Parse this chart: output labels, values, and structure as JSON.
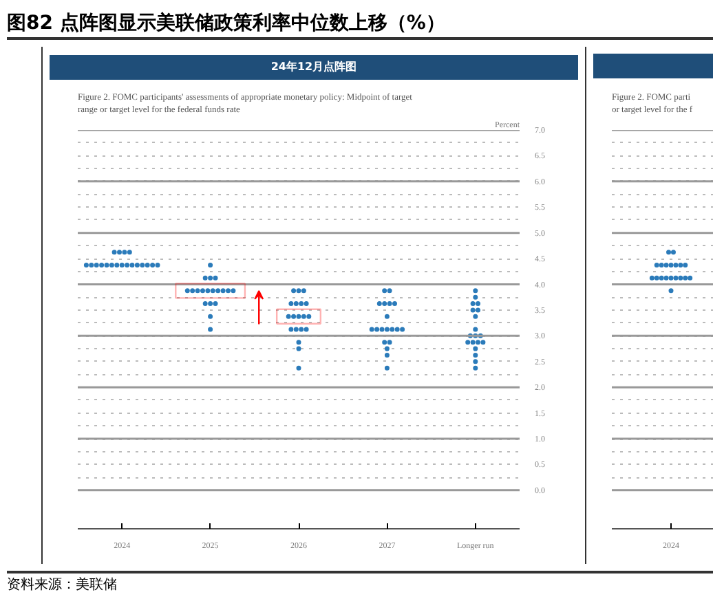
{
  "chart_data": [
    {
      "type": "scatter",
      "title": "24年12月点阵图",
      "subtitle": "Figure 2.  FOMC participants' assessments of appropriate monetary policy: Midpoint of target range or target level for the federal funds rate",
      "ylabel": "Percent",
      "annotations": [
        "图82 点阵图显示美联储政策利率中位数上移（%）",
        "资料来源：美联储"
      ],
      "categories": [
        "2024",
        "2025",
        "2026",
        "2027",
        "Longer run"
      ],
      "ylim": [
        -0.75,
        7
      ],
      "yticks": [
        {
          "value": 0,
          "label": "0.0"
        },
        {
          "value": 0.25,
          "label": null
        },
        {
          "value": 0.5,
          "label": "0.5"
        },
        {
          "value": 0.75,
          "label": null
        },
        {
          "value": 1,
          "label": "1.0"
        },
        {
          "value": 1.25,
          "label": null
        },
        {
          "value": 1.5,
          "label": "1.5"
        },
        {
          "value": 1.75,
          "label": null
        },
        {
          "value": 2,
          "label": "2.0"
        },
        {
          "value": 2.25,
          "label": null
        },
        {
          "value": 2.5,
          "label": "2.5"
        },
        {
          "value": 2.75,
          "label": null
        },
        {
          "value": 3,
          "label": "3.0"
        },
        {
          "value": 3.25,
          "label": null
        },
        {
          "value": 3.5,
          "label": "3.5"
        },
        {
          "value": 3.75,
          "label": null
        },
        {
          "value": 4,
          "label": "4.0"
        },
        {
          "value": 4.25,
          "label": null
        },
        {
          "value": 4.5,
          "label": "4.5"
        },
        {
          "value": 4.75,
          "label": null
        },
        {
          "value": 5,
          "label": "5.0"
        },
        {
          "value": 5.25,
          "label": null
        },
        {
          "value": 5.5,
          "label": "5.5"
        },
        {
          "value": 5.75,
          "label": null
        },
        {
          "value": 6,
          "label": "6.0"
        },
        {
          "value": 6.25,
          "label": null
        },
        {
          "value": 6.5,
          "label": "6.5"
        },
        {
          "value": 6.75,
          "label": null
        },
        {
          "value": 7,
          "label": "7.0"
        }
      ],
      "grid": "y",
      "marker": "circle",
      "series": [
        {
          "color": "#2b7bba",
          "values": [
            4.625,
            4.375,
            3.875,
            3.875,
            3.875
          ]
        },
        {
          "color": "#2b7bba",
          "values": [
            4.625,
            4.125,
            3.875,
            3.875,
            3.75
          ]
        },
        {
          "color": "#2b7bba",
          "values": [
            4.625,
            4.125,
            3.875,
            3.625,
            3.625
          ]
        },
        {
          "color": "#2b7bba",
          "values": [
            4.625,
            4.125,
            3.625,
            3.625,
            3.625
          ]
        },
        {
          "color": "#2b7bba",
          "values": [
            4.375,
            3.875,
            3.625,
            3.625,
            3.5
          ]
        },
        {
          "color": "#2b7bba",
          "values": [
            4.375,
            3.875,
            3.625,
            3.625,
            3.5
          ]
        },
        {
          "color": "#2b7bba",
          "values": [
            4.375,
            3.875,
            3.625,
            3.375,
            3.375
          ]
        },
        {
          "color": "#2b7bba",
          "values": [
            4.375,
            3.875,
            3.375,
            3.125,
            3.125
          ]
        },
        {
          "color": "#2b7bba",
          "values": [
            4.375,
            3.875,
            3.375,
            3.125,
            3.0
          ]
        },
        {
          "color": "#2b7bba",
          "values": [
            4.375,
            3.875,
            3.375,
            3.125,
            3.0
          ]
        },
        {
          "color": "#2b7bba",
          "values": [
            4.375,
            3.875,
            3.375,
            3.125,
            3.0
          ]
        },
        {
          "color": "#2b7bba",
          "values": [
            4.375,
            3.875,
            3.375,
            3.125,
            2.875
          ]
        },
        {
          "color": "#2b7bba",
          "values": [
            4.375,
            3.875,
            3.125,
            3.125,
            2.875
          ]
        },
        {
          "color": "#2b7bba",
          "values": [
            4.375,
            3.875,
            3.125,
            3.125,
            2.875
          ]
        },
        {
          "color": "#2b7bba",
          "values": [
            4.375,
            3.625,
            3.125,
            2.875,
            2.875
          ]
        },
        {
          "color": "#2b7bba",
          "values": [
            4.375,
            3.625,
            3.125,
            2.875,
            2.75
          ]
        },
        {
          "color": "#2b7bba",
          "values": [
            4.375,
            3.625,
            2.875,
            2.75,
            2.625
          ]
        },
        {
          "color": "#2b7bba",
          "values": [
            4.375,
            3.375,
            2.75,
            2.625,
            2.5
          ]
        },
        {
          "color": "#2b7bba",
          "values": [
            4.375,
            3.125,
            2.375,
            2.375,
            2.375
          ]
        }
      ]
    },
    {
      "type": "scatter",
      "subtitle": "Figure 2.  FOMC parti\nor target level for the f",
      "categories": [
        "2024"
      ],
      "ylim": [
        -0.75,
        7
      ],
      "yticks": [
        0,
        0.25,
        0.5,
        0.75,
        1,
        1.25,
        1.5,
        1.75,
        2,
        2.25,
        2.5,
        2.75,
        3,
        3.25,
        3.5,
        3.75,
        4,
        4.25,
        4.5,
        4.75,
        5,
        5.25,
        5.5,
        5.75,
        6,
        6.25,
        6.5,
        6.75,
        7
      ],
      "tick_labels": "x",
      "grid": "y",
      "marker": "circle",
      "series": [
        {
          "color": "#2b7bba",
          "values": [
            4.625
          ]
        },
        {
          "color": "#2b7bba",
          "values": [
            4.625
          ]
        },
        {
          "color": "#2b7bba",
          "values": [
            4.375
          ]
        },
        {
          "color": "#2b7bba",
          "values": [
            4.375
          ]
        },
        {
          "color": "#2b7bba",
          "values": [
            4.375
          ]
        },
        {
          "color": "#2b7bba",
          "values": [
            4.375
          ]
        },
        {
          "color": "#2b7bba",
          "values": [
            4.375
          ]
        },
        {
          "color": "#2b7bba",
          "values": [
            4.375
          ]
        },
        {
          "color": "#2b7bba",
          "values": [
            4.375
          ]
        },
        {
          "color": "#2b7bba",
          "values": [
            4.125
          ]
        },
        {
          "color": "#2b7bba",
          "values": [
            4.125
          ]
        },
        {
          "color": "#2b7bba",
          "values": [
            4.125
          ]
        },
        {
          "color": "#2b7bba",
          "values": [
            4.125
          ]
        },
        {
          "color": "#2b7bba",
          "values": [
            4.125
          ]
        },
        {
          "color": "#2b7bba",
          "values": [
            4.125
          ]
        },
        {
          "color": "#2b7bba",
          "values": [
            4.125
          ]
        },
        {
          "color": "#2b7bba",
          "values": [
            4.125
          ]
        },
        {
          "color": "#2b7bba",
          "values": [
            4.125
          ]
        },
        {
          "color": "#2b7bba",
          "values": [
            3.875
          ]
        }
      ]
    }
  ]
}
